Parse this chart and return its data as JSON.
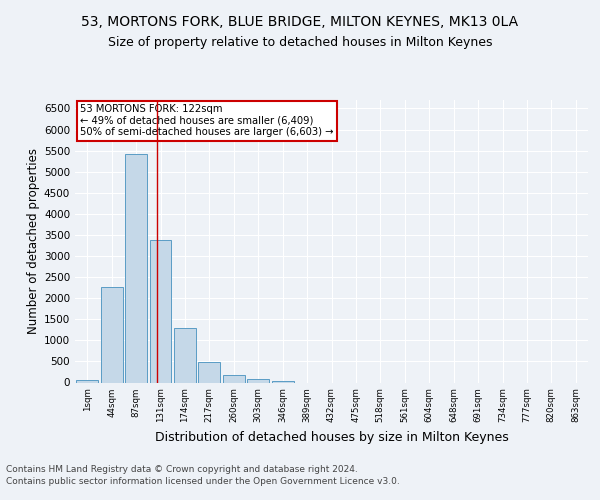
{
  "title1": "53, MORTONS FORK, BLUE BRIDGE, MILTON KEYNES, MK13 0LA",
  "title2": "Size of property relative to detached houses in Milton Keynes",
  "xlabel": "Distribution of detached houses by size in Milton Keynes",
  "ylabel": "Number of detached properties",
  "footer1": "Contains HM Land Registry data © Crown copyright and database right 2024.",
  "footer2": "Contains public sector information licensed under the Open Government Licence v3.0.",
  "bar_labels": [
    "1sqm",
    "44sqm",
    "87sqm",
    "131sqm",
    "174sqm",
    "217sqm",
    "260sqm",
    "303sqm",
    "346sqm",
    "389sqm",
    "432sqm",
    "475sqm",
    "518sqm",
    "561sqm",
    "604sqm",
    "648sqm",
    "691sqm",
    "734sqm",
    "777sqm",
    "820sqm",
    "863sqm"
  ],
  "bar_values": [
    60,
    2270,
    5430,
    3380,
    1300,
    490,
    185,
    75,
    30,
    0,
    0,
    0,
    0,
    0,
    0,
    0,
    0,
    0,
    0,
    0,
    0
  ],
  "bar_color": "#c5d8e8",
  "bar_edgecolor": "#5a9cc5",
  "vline_x": 2.85,
  "vline_color": "#cc0000",
  "annotation_title": "53 MORTONS FORK: 122sqm",
  "annotation_line1": "← 49% of detached houses are smaller (6,409)",
  "annotation_line2": "50% of semi-detached houses are larger (6,603) →",
  "annotation_box_color": "#ffffff",
  "annotation_box_edgecolor": "#cc0000",
  "ylim": [
    0,
    6700
  ],
  "yticks": [
    0,
    500,
    1000,
    1500,
    2000,
    2500,
    3000,
    3500,
    4000,
    4500,
    5000,
    5500,
    6000,
    6500
  ],
  "background_color": "#eef2f7",
  "grid_color": "#ffffff",
  "title1_fontsize": 10,
  "title2_fontsize": 9,
  "xlabel_fontsize": 9,
  "ylabel_fontsize": 8.5,
  "footer_fontsize": 6.5
}
